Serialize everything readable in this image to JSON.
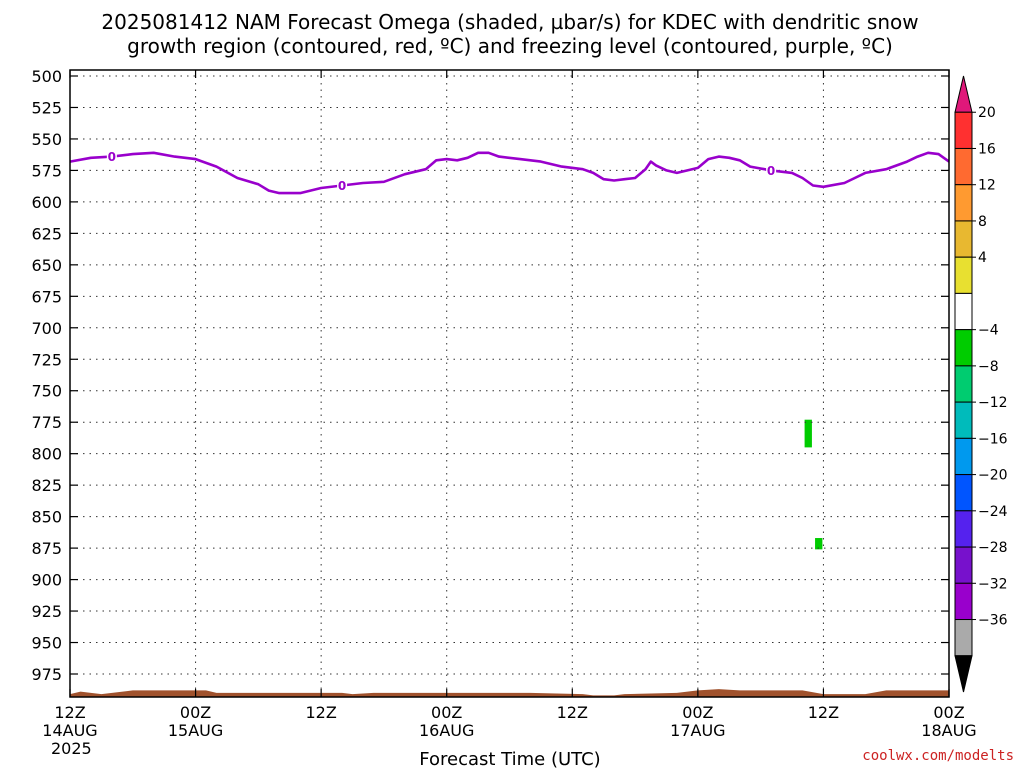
{
  "chart_data": {
    "type": "heatmap",
    "title_lines": [
      "2025081412 NAM Forecast Omega (shaded, µbar/s) for KDEC with dendritic snow",
      "growth region (contoured, red, ºC) and freezing level (contoured, purple, ºC)"
    ],
    "xlabel": "Forecast Time (UTC)",
    "credit": "coolwx.com/modelts",
    "y_axis": {
      "unit": "hPa",
      "reversed": true,
      "range": [
        500,
        1000
      ],
      "ticks": [
        500,
        525,
        550,
        575,
        600,
        625,
        650,
        675,
        700,
        725,
        750,
        775,
        800,
        825,
        850,
        875,
        900,
        925,
        950,
        975
      ]
    },
    "x_axis": {
      "range_hours": [
        0,
        84
      ],
      "ticks": [
        {
          "hour": 0,
          "label": "12Z",
          "sub": "14AUG",
          "sub2": "2025"
        },
        {
          "hour": 12,
          "label": "00Z",
          "sub": "15AUG",
          "sub2": ""
        },
        {
          "hour": 24,
          "label": "12Z",
          "sub": "",
          "sub2": ""
        },
        {
          "hour": 36,
          "label": "00Z",
          "sub": "16AUG",
          "sub2": ""
        },
        {
          "hour": 48,
          "label": "12Z",
          "sub": "",
          "sub2": ""
        },
        {
          "hour": 60,
          "label": "00Z",
          "sub": "17AUG",
          "sub2": ""
        },
        {
          "hour": 72,
          "label": "12Z",
          "sub": "",
          "sub2": ""
        },
        {
          "hour": 84,
          "label": "00Z",
          "sub": "18AUG",
          "sub2": ""
        }
      ]
    },
    "grid": true,
    "freezing_level": {
      "color": "#9900cc",
      "contour_label": "0",
      "label_hours": [
        4,
        26,
        67
      ],
      "points": [
        [
          0,
          568
        ],
        [
          2,
          565
        ],
        [
          4,
          564
        ],
        [
          6,
          562
        ],
        [
          8,
          561
        ],
        [
          10,
          564
        ],
        [
          12,
          566
        ],
        [
          14,
          572
        ],
        [
          16,
          581
        ],
        [
          18,
          586
        ],
        [
          19,
          591
        ],
        [
          20,
          593
        ],
        [
          22,
          593
        ],
        [
          24,
          589
        ],
        [
          26,
          587
        ],
        [
          28,
          585
        ],
        [
          30,
          584
        ],
        [
          32,
          578
        ],
        [
          34,
          574
        ],
        [
          35,
          567
        ],
        [
          36,
          566
        ],
        [
          37,
          567
        ],
        [
          38,
          565
        ],
        [
          39,
          561
        ],
        [
          40,
          561
        ],
        [
          41,
          564
        ],
        [
          43,
          566
        ],
        [
          45,
          568
        ],
        [
          47,
          572
        ],
        [
          49,
          574
        ],
        [
          50,
          577
        ],
        [
          51,
          582
        ],
        [
          52,
          583
        ],
        [
          53,
          582
        ],
        [
          54,
          581
        ],
        [
          55,
          574
        ],
        [
          55.5,
          568
        ],
        [
          56,
          571
        ],
        [
          57,
          575
        ],
        [
          58,
          577
        ],
        [
          60,
          573
        ],
        [
          61,
          566
        ],
        [
          62,
          564
        ],
        [
          63,
          565
        ],
        [
          64,
          567
        ],
        [
          65,
          572
        ],
        [
          67,
          575
        ],
        [
          69,
          577
        ],
        [
          70,
          581
        ],
        [
          71,
          587
        ],
        [
          72,
          588
        ],
        [
          74,
          585
        ],
        [
          75,
          581
        ],
        [
          76,
          577
        ],
        [
          78,
          574
        ],
        [
          80,
          568
        ],
        [
          81,
          564
        ],
        [
          82,
          561
        ],
        [
          83,
          562
        ],
        [
          84,
          568
        ]
      ]
    },
    "shaded_regions": [
      {
        "hour_start": 70.2,
        "hour_end": 70.9,
        "p_top": 773,
        "p_bottom": 795,
        "color": "#00cc00"
      },
      {
        "hour_start": 71.2,
        "hour_end": 71.9,
        "p_top": 867,
        "p_bottom": 876,
        "color": "#00cc00"
      }
    ],
    "surface_pressure": {
      "color": "#a0522d",
      "points": [
        [
          0,
          991
        ],
        [
          1,
          989
        ],
        [
          3,
          991
        ],
        [
          6,
          988
        ],
        [
          10,
          988
        ],
        [
          13,
          988
        ],
        [
          14,
          990
        ],
        [
          17,
          990
        ],
        [
          26,
          990
        ],
        [
          27,
          991
        ],
        [
          29,
          990
        ],
        [
          36,
          990
        ],
        [
          44,
          990
        ],
        [
          49,
          991
        ],
        [
          50,
          992
        ],
        [
          52,
          992
        ],
        [
          53,
          991
        ],
        [
          58,
          990
        ],
        [
          60,
          988
        ],
        [
          62,
          987
        ],
        [
          64,
          988
        ],
        [
          70,
          988
        ],
        [
          72,
          991
        ],
        [
          76,
          991
        ],
        [
          78,
          988
        ],
        [
          84,
          988
        ]
      ]
    },
    "colorbar": {
      "colors": [
        "#e0187a",
        "#ff3030",
        "#ff6a30",
        "#ff9a30",
        "#e8b830",
        "#e8e030",
        "#ffffff",
        "#00cc00",
        "#00cc70",
        "#00bbbb",
        "#0099ee",
        "#0055ff",
        "#5522ee",
        "#7711cc",
        "#9900cc",
        "#aaaaaa",
        "#000000"
      ],
      "labels": [
        "20",
        "16",
        "12",
        "8",
        "4",
        "−4",
        "−8",
        "−12",
        "−16",
        "−20",
        "−24",
        "−28",
        "−32",
        "−36"
      ]
    }
  }
}
